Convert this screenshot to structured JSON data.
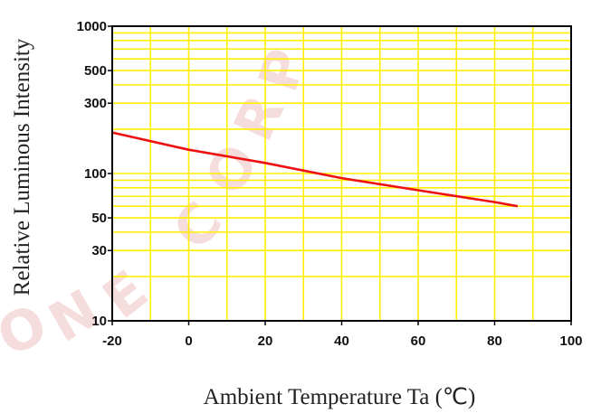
{
  "chart_data": {
    "type": "line",
    "title": "",
    "xlabel": "Ambient Temperature Ta (℃)",
    "ylabel": "Relative Luminous Intensity",
    "x_scale": "linear",
    "y_scale": "log",
    "xlim": [
      -20,
      100
    ],
    "ylim": [
      10,
      1000
    ],
    "x_ticks": [
      "-20",
      "0",
      "20",
      "40",
      "60",
      "80",
      "100"
    ],
    "x_tick_values": [
      -20,
      0,
      20,
      40,
      60,
      80,
      100
    ],
    "y_ticks": [
      "1000",
      "500",
      "300",
      "100",
      "50",
      "30",
      "10"
    ],
    "y_tick_values": [
      1000,
      500,
      300,
      100,
      50,
      30,
      10
    ],
    "grid": true,
    "grid_color": "#ffee00",
    "line_color": "#ee1111",
    "series": [
      {
        "x": [
          -20,
          0,
          20,
          40,
          60,
          80,
          86
        ],
        "y": [
          190,
          145,
          118,
          93,
          77,
          64,
          60
        ]
      }
    ]
  },
  "watermark": {
    "text_ring": "ONE CORP.",
    "color": "#e8a0a0"
  }
}
